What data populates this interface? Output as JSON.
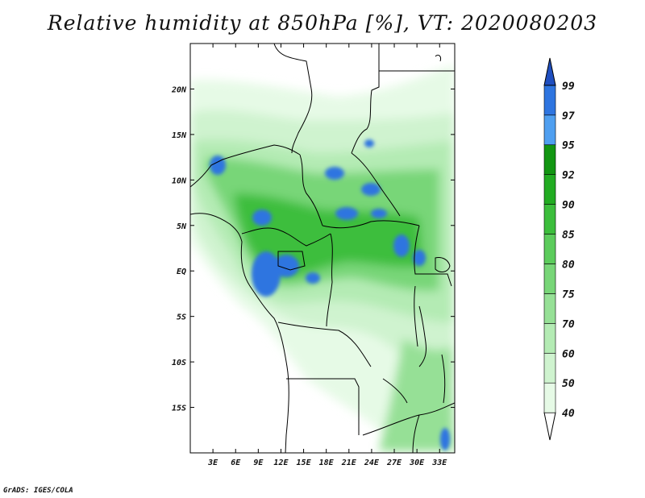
{
  "title": "Relative humidity at 850hPa [%], VT: 2020080203",
  "credit": "GrADS: IGES/COLA",
  "map": {
    "lon_range": [
      0,
      35
    ],
    "lat_range": [
      -20,
      25
    ],
    "lat_ticks": [
      {
        "value": 20,
        "label": "20N"
      },
      {
        "value": 15,
        "label": "15N"
      },
      {
        "value": 10,
        "label": "10N"
      },
      {
        "value": 5,
        "label": "5N"
      },
      {
        "value": 0,
        "label": "EQ"
      },
      {
        "value": -5,
        "label": "5S"
      },
      {
        "value": -10,
        "label": "10S"
      },
      {
        "value": -15,
        "label": "15S"
      }
    ],
    "lon_ticks": [
      {
        "value": 3,
        "label": "3E"
      },
      {
        "value": 6,
        "label": "6E"
      },
      {
        "value": 9,
        "label": "9E"
      },
      {
        "value": 12,
        "label": "12E"
      },
      {
        "value": 15,
        "label": "15E"
      },
      {
        "value": 18,
        "label": "18E"
      },
      {
        "value": 21,
        "label": "21E"
      },
      {
        "value": 24,
        "label": "24E"
      },
      {
        "value": 27,
        "label": "27E"
      },
      {
        "value": 30,
        "label": "30E"
      },
      {
        "value": 33,
        "label": "33E"
      }
    ]
  },
  "colorbar": {
    "levels": [
      "40",
      "50",
      "60",
      "70",
      "75",
      "80",
      "85",
      "90",
      "92",
      "95",
      "97",
      "99"
    ],
    "colors": [
      "#ffffff",
      "#e6fae6",
      "#cff3cf",
      "#b4ebb4",
      "#96e096",
      "#78d678",
      "#5ccc5c",
      "#3cbe3c",
      "#22ac22",
      "#129612",
      "#4f9ff0",
      "#2e75e0",
      "#1f4fc0"
    ]
  }
}
